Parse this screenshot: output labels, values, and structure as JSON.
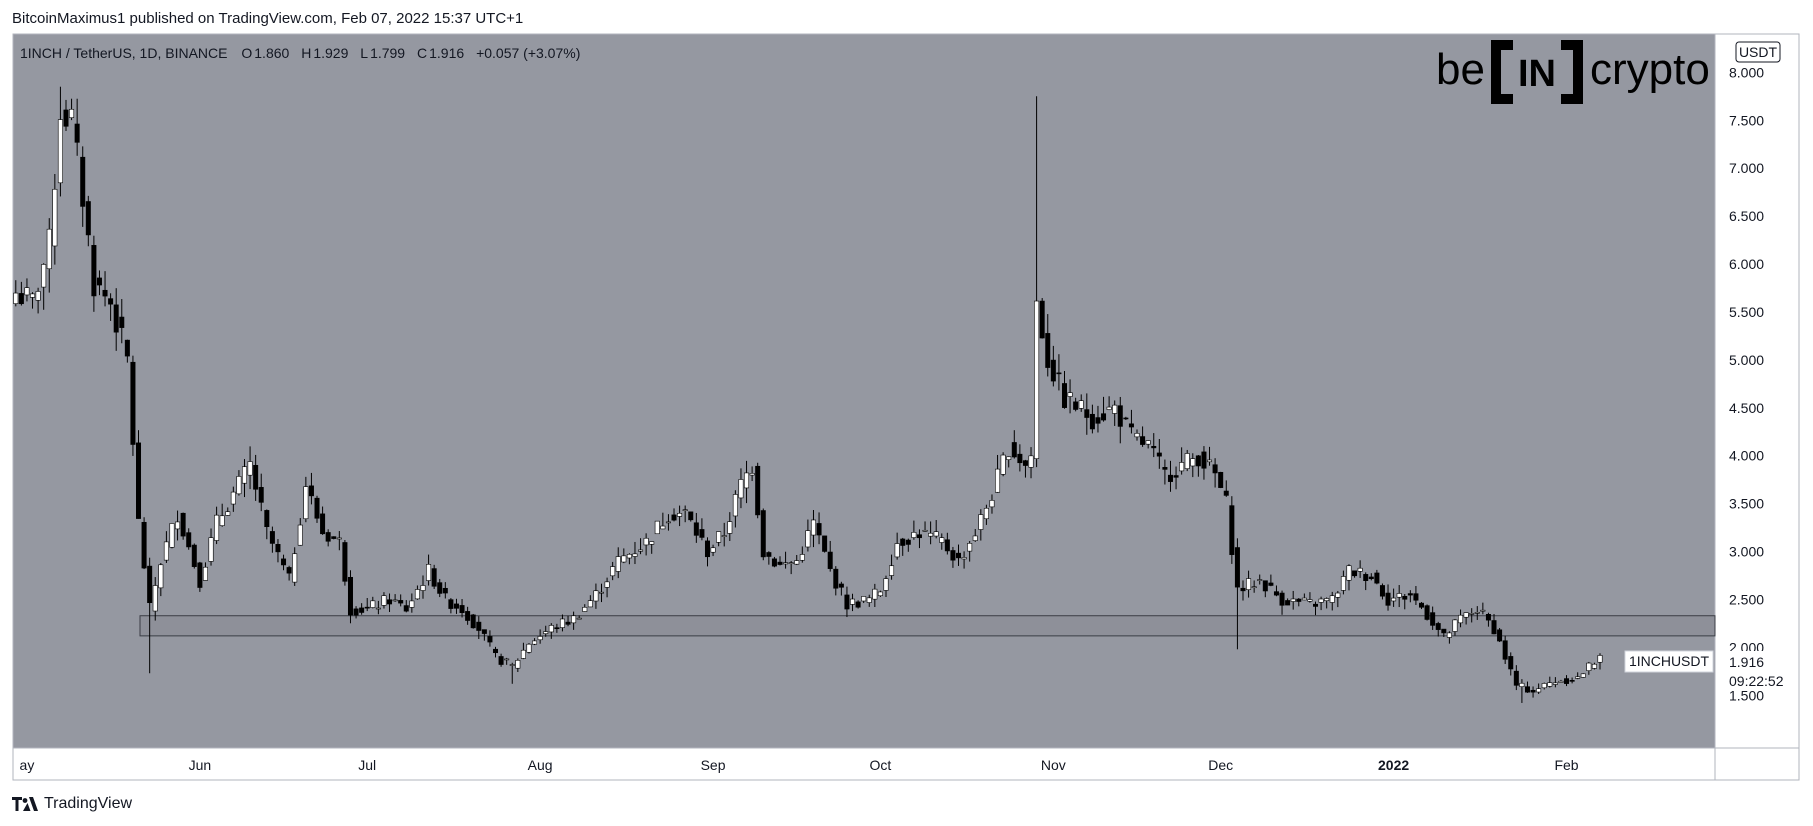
{
  "header": {
    "published": "BitcoinMaximus1 published on TradingView.com, Feb 07, 2022 15:37 UTC+1"
  },
  "footer": {
    "brand": "TradingView",
    "logo_icon": "tradingview-logo-icon"
  },
  "logo": {
    "left": "be",
    "mid": "IN",
    "right": "crypto"
  },
  "chart_data": {
    "type": "candlestick",
    "symbol_line": "1INCH / TetherUS, 1D, BINANCE",
    "ohlc": {
      "o_label": "O",
      "o": "1.860",
      "h_label": "H",
      "h": "1.929",
      "l_label": "L",
      "l": "1.799",
      "c_label": "C",
      "c": "1.916",
      "change": "+0.057 (+3.07%)"
    },
    "currency": "USDT",
    "ylim": [
      0.95,
      8.4
    ],
    "y_ticks": [
      "8.000",
      "7.500",
      "7.000",
      "6.500",
      "6.000",
      "5.500",
      "5.000",
      "4.500",
      "4.000",
      "3.500",
      "3.000",
      "2.500",
      "2.000",
      "1.500"
    ],
    "x_ticks": [
      {
        "label": "ay",
        "date": "2021-05-01"
      },
      {
        "label": "Jun",
        "date": "2021-06-01"
      },
      {
        "label": "Jul",
        "date": "2021-07-01"
      },
      {
        "label": "Aug",
        "date": "2021-08-01"
      },
      {
        "label": "Sep",
        "date": "2021-09-01"
      },
      {
        "label": "Oct",
        "date": "2021-10-01"
      },
      {
        "label": "Nov",
        "date": "2021-11-01"
      },
      {
        "label": "Dec",
        "date": "2021-12-01"
      },
      {
        "label": "2022",
        "date": "2022-01-01"
      },
      {
        "label": "Feb",
        "date": "2022-02-01"
      }
    ],
    "support_zone": {
      "low": 2.12,
      "high": 2.33
    },
    "last_price": {
      "label": "1INCHUSDT",
      "value": "1.916",
      "countdown": "09:22:52",
      "numeric": 1.916
    },
    "series_start": "2021-04-29",
    "series_end": "2022-02-07",
    "anchors": [
      [
        "2021-04-29",
        5.7
      ],
      [
        "2021-05-02",
        5.6
      ],
      [
        "2021-05-05",
        6.2
      ],
      [
        "2021-05-07",
        7.6
      ],
      [
        "2021-05-09",
        7.5
      ],
      [
        "2021-05-11",
        6.7
      ],
      [
        "2021-05-13",
        5.8
      ],
      [
        "2021-05-16",
        5.6
      ],
      [
        "2021-05-19",
        5.0
      ],
      [
        "2021-05-21",
        3.3
      ],
      [
        "2021-05-23",
        2.4
      ],
      [
        "2021-05-25",
        2.9
      ],
      [
        "2021-05-28",
        3.4
      ],
      [
        "2021-06-01",
        2.7
      ],
      [
        "2021-06-04",
        3.3
      ],
      [
        "2021-06-07",
        3.6
      ],
      [
        "2021-06-10",
        3.9
      ],
      [
        "2021-06-13",
        3.2
      ],
      [
        "2021-06-17",
        2.7
      ],
      [
        "2021-06-20",
        3.7
      ],
      [
        "2021-06-23",
        3.2
      ],
      [
        "2021-06-26",
        3.1
      ],
      [
        "2021-06-28",
        2.4
      ],
      [
        "2021-07-01",
        2.4
      ],
      [
        "2021-07-05",
        2.5
      ],
      [
        "2021-07-08",
        2.4
      ],
      [
        "2021-07-12",
        2.8
      ],
      [
        "2021-07-15",
        2.5
      ],
      [
        "2021-07-18",
        2.4
      ],
      [
        "2021-07-21",
        2.2
      ],
      [
        "2021-07-24",
        1.9
      ],
      [
        "2021-07-27",
        1.8
      ],
      [
        "2021-07-30",
        2.05
      ],
      [
        "2021-08-03",
        2.2
      ],
      [
        "2021-08-07",
        2.3
      ],
      [
        "2021-08-11",
        2.55
      ],
      [
        "2021-08-15",
        2.9
      ],
      [
        "2021-08-20",
        3.1
      ],
      [
        "2021-08-24",
        3.4
      ],
      [
        "2021-08-27",
        3.4
      ],
      [
        "2021-08-31",
        3.0
      ],
      [
        "2021-09-03",
        3.2
      ],
      [
        "2021-09-06",
        3.7
      ],
      [
        "2021-09-08",
        3.9
      ],
      [
        "2021-09-10",
        3.0
      ],
      [
        "2021-09-13",
        2.85
      ],
      [
        "2021-09-16",
        2.9
      ],
      [
        "2021-09-19",
        3.3
      ],
      [
        "2021-09-22",
        2.8
      ],
      [
        "2021-09-25",
        2.45
      ],
      [
        "2021-09-29",
        2.5
      ],
      [
        "2021-10-01",
        2.6
      ],
      [
        "2021-10-04",
        3.1
      ],
      [
        "2021-10-08",
        3.2
      ],
      [
        "2021-10-12",
        3.1
      ],
      [
        "2021-10-15",
        2.9
      ],
      [
        "2021-10-18",
        3.2
      ],
      [
        "2021-10-21",
        3.6
      ],
      [
        "2021-10-24",
        4.1
      ],
      [
        "2021-10-27",
        3.9
      ],
      [
        "2021-10-28",
        4.0
      ],
      [
        "2021-10-29",
        5.6
      ],
      [
        "2021-10-31",
        5.0
      ],
      [
        "2021-11-03",
        4.6
      ],
      [
        "2021-11-08",
        4.4
      ],
      [
        "2021-11-12",
        4.5
      ],
      [
        "2021-11-15",
        4.2
      ],
      [
        "2021-11-18",
        4.1
      ],
      [
        "2021-11-21",
        3.8
      ],
      [
        "2021-11-24",
        3.9
      ],
      [
        "2021-11-27",
        4.0
      ],
      [
        "2021-11-30",
        3.8
      ],
      [
        "2021-12-02",
        3.5
      ],
      [
        "2021-12-04",
        2.6
      ],
      [
        "2021-12-08",
        2.7
      ],
      [
        "2021-12-12",
        2.5
      ],
      [
        "2021-12-17",
        2.45
      ],
      [
        "2021-12-21",
        2.5
      ],
      [
        "2021-12-24",
        2.8
      ],
      [
        "2021-12-28",
        2.75
      ],
      [
        "2021-12-31",
        2.5
      ],
      [
        "2022-01-04",
        2.55
      ],
      [
        "2022-01-07",
        2.35
      ],
      [
        "2022-01-10",
        2.1
      ],
      [
        "2022-01-13",
        2.3
      ],
      [
        "2022-01-16",
        2.4
      ],
      [
        "2022-01-19",
        2.2
      ],
      [
        "2022-01-21",
        1.9
      ],
      [
        "2022-01-23",
        1.6
      ],
      [
        "2022-01-26",
        1.55
      ],
      [
        "2022-01-30",
        1.65
      ],
      [
        "2022-02-03",
        1.68
      ],
      [
        "2022-02-07",
        1.916
      ]
    ],
    "spikes": [
      {
        "date": "2021-05-07",
        "high": 7.85
      },
      {
        "date": "2021-05-23",
        "low": 1.73
      },
      {
        "date": "2021-07-27",
        "low": 1.62
      },
      {
        "date": "2021-10-29",
        "high": 7.75
      },
      {
        "date": "2021-12-04",
        "low": 1.98
      },
      {
        "date": "2022-01-24",
        "low": 1.42
      }
    ],
    "colors": {
      "panel": "#9598a1",
      "up_body": "#ffffff",
      "down_body": "#000000",
      "wick": "#000000",
      "zone_stroke": "#3a3d45",
      "zone_fill": "#8e9099"
    }
  }
}
